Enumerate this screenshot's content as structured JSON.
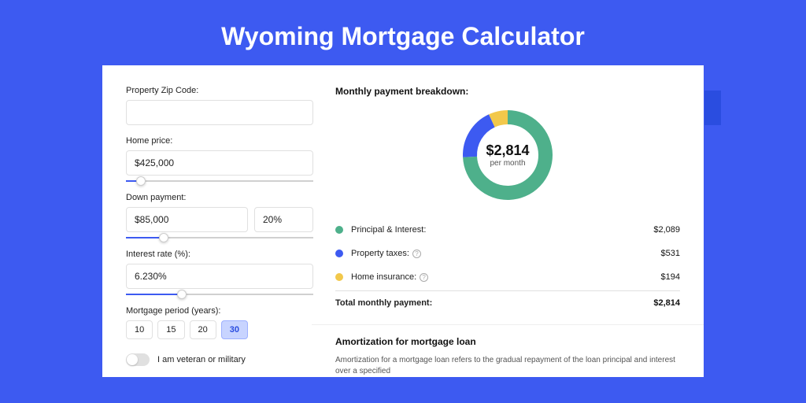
{
  "page": {
    "title": "Wyoming Mortgage Calculator",
    "bg_color": "#3d5af1",
    "side_strip_color": "#2a4de0",
    "card_bg": "#ffffff"
  },
  "form": {
    "zip": {
      "label": "Property Zip Code:",
      "value": ""
    },
    "home_price": {
      "label": "Home price:",
      "value": "$425,000",
      "slider_pct": 8
    },
    "down_payment": {
      "label": "Down payment:",
      "value": "$85,000",
      "percent": "20%",
      "slider_pct": 20
    },
    "interest_rate": {
      "label": "Interest rate (%):",
      "value": "6.230%",
      "slider_pct": 30
    },
    "period": {
      "label": "Mortgage period (years):",
      "options": [
        "10",
        "15",
        "20",
        "30"
      ],
      "selected": "30"
    },
    "veteran": {
      "label": "I am veteran or military",
      "checked": false
    }
  },
  "breakdown": {
    "title": "Monthly payment breakdown:",
    "center_amount": "$2,814",
    "center_sub": "per month",
    "donut": {
      "slices": [
        {
          "key": "principal_interest",
          "value": 2089,
          "color": "#4eb08b"
        },
        {
          "key": "property_taxes",
          "value": 531,
          "color": "#3d5af1"
        },
        {
          "key": "home_insurance",
          "value": 194,
          "color": "#f2c84b"
        }
      ],
      "stroke_width": 18,
      "ring_bg": "#ffffff"
    },
    "rows": [
      {
        "label": "Principal & Interest:",
        "value": "$2,089",
        "color": "#4eb08b",
        "info": false
      },
      {
        "label": "Property taxes:",
        "value": "$531",
        "color": "#3d5af1",
        "info": true
      },
      {
        "label": "Home insurance:",
        "value": "$194",
        "color": "#f2c84b",
        "info": true
      }
    ],
    "total": {
      "label": "Total monthly payment:",
      "value": "$2,814"
    }
  },
  "amortization": {
    "title": "Amortization for mortgage loan",
    "text": "Amortization for a mortgage loan refers to the gradual repayment of the loan principal and interest over a specified"
  }
}
